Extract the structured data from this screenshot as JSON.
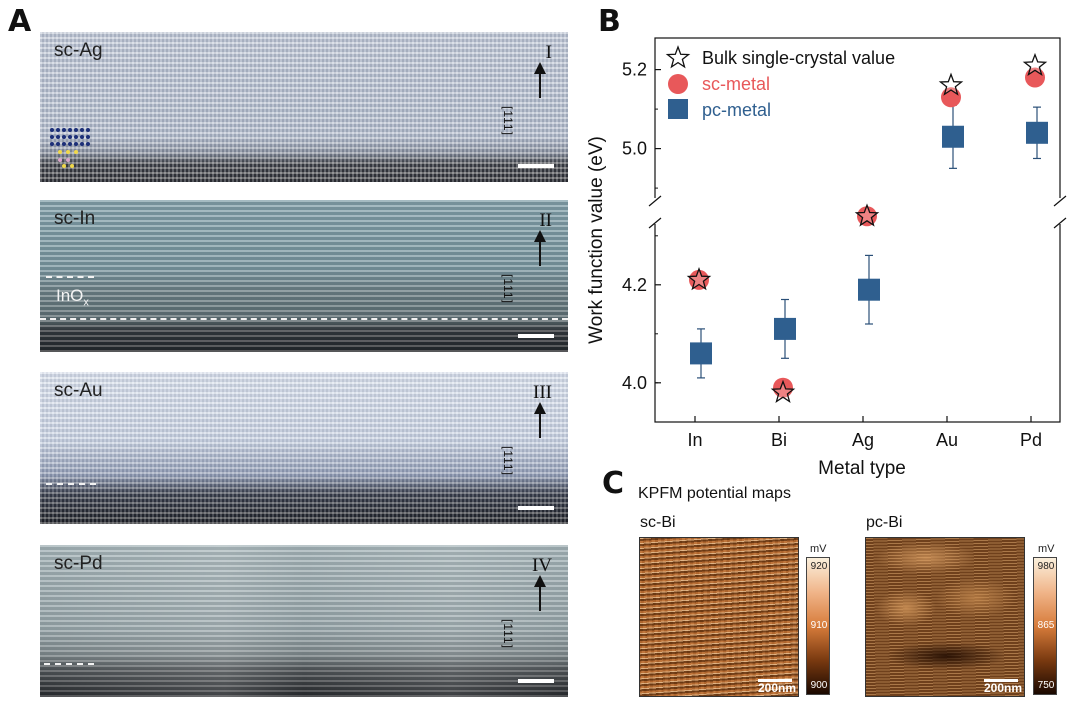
{
  "panels": {
    "a": "A",
    "b": "B",
    "c": "C"
  },
  "tem_images": [
    {
      "label": "sc-Ag",
      "roman": "I",
      "direction": "[111]"
    },
    {
      "label": "sc-In",
      "roman": "II",
      "direction": "[111]",
      "annotation": "InO",
      "annotation_sub": "x"
    },
    {
      "label": "sc-Au",
      "roman": "III",
      "direction": "[111]"
    },
    {
      "label": "sc-Pd",
      "roman": "IV",
      "direction": "[111]"
    }
  ],
  "kpfm": {
    "title": "KPFM potential maps",
    "maps": [
      {
        "label": "sc-Bi",
        "scalebar": "200nm",
        "unit": "mV",
        "ticks": [
          "920",
          "910",
          "900"
        ]
      },
      {
        "label": "pc-Bi",
        "scalebar": "200nm",
        "unit": "mV",
        "ticks": [
          "980",
          "865",
          "750"
        ]
      }
    ]
  },
  "colors": {
    "sc": "#e8585a",
    "pc": "#2f5f8f"
  },
  "chart_data": {
    "type": "scatter",
    "title": "",
    "xlabel": "Metal type",
    "ylabel": "Work function value (eV)",
    "categories": [
      "In",
      "Bi",
      "Ag",
      "Au",
      "Pd"
    ],
    "y_broken_axis": true,
    "ylim_lower": [
      3.92,
      4.32
    ],
    "ylim_upper": [
      4.88,
      5.28
    ],
    "yticks": [
      "4.0",
      "4.2",
      "5.0",
      "5.2"
    ],
    "legend_position": "top-left",
    "series": [
      {
        "name": "Bulk single-crystal value",
        "marker": "star",
        "values": [
          4.21,
          3.98,
          4.34,
          5.16,
          5.21
        ]
      },
      {
        "name": "sc-metal",
        "marker": "circle",
        "values": [
          4.21,
          3.99,
          4.34,
          5.13,
          5.18
        ]
      },
      {
        "name": "pc-metal",
        "marker": "square",
        "values": [
          4.06,
          4.11,
          4.19,
          5.03,
          5.04
        ],
        "error": [
          0.05,
          0.06,
          0.07,
          0.08,
          0.065
        ]
      }
    ]
  }
}
